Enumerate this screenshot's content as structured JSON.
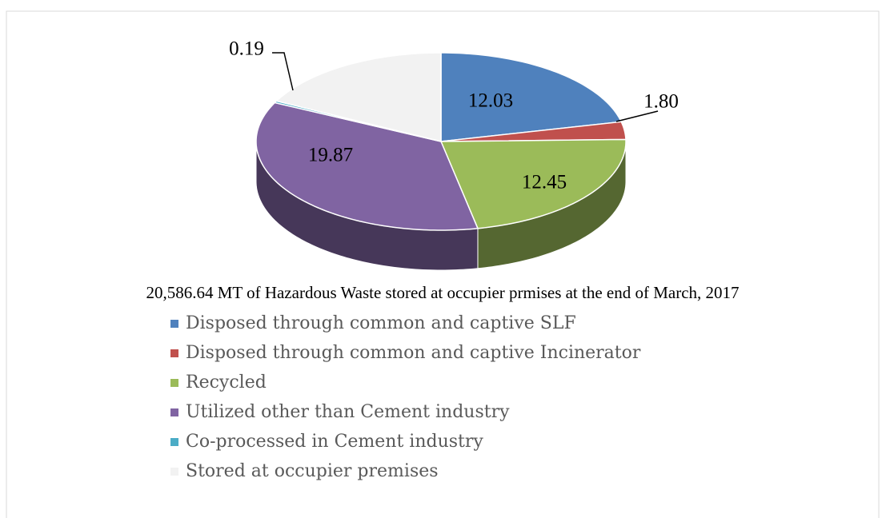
{
  "chart_data": {
    "type": "pie",
    "title": "20,586.64 MT of Hazardous Waste stored at occupier prmises at the end of March, 2017",
    "categories": [
      "Disposed through common and captive SLF",
      "Disposed through common and captive Incinerator",
      "Recycled",
      "Utilized other than Cement industry",
      "Co-processed in Cement industry",
      "Stored at occupier premises"
    ],
    "values": [
      12.03,
      1.8,
      12.45,
      19.87,
      0.19,
      9.8
    ],
    "value_labels": [
      "12.03",
      "1.80",
      "12.45",
      "19.87",
      "0.19",
      null
    ],
    "colors": [
      "#4f81bd",
      "#c0504d",
      "#9bbb59",
      "#8064a2",
      "#4bacc6",
      "#f2f2f2"
    ],
    "legend": "bottom"
  }
}
